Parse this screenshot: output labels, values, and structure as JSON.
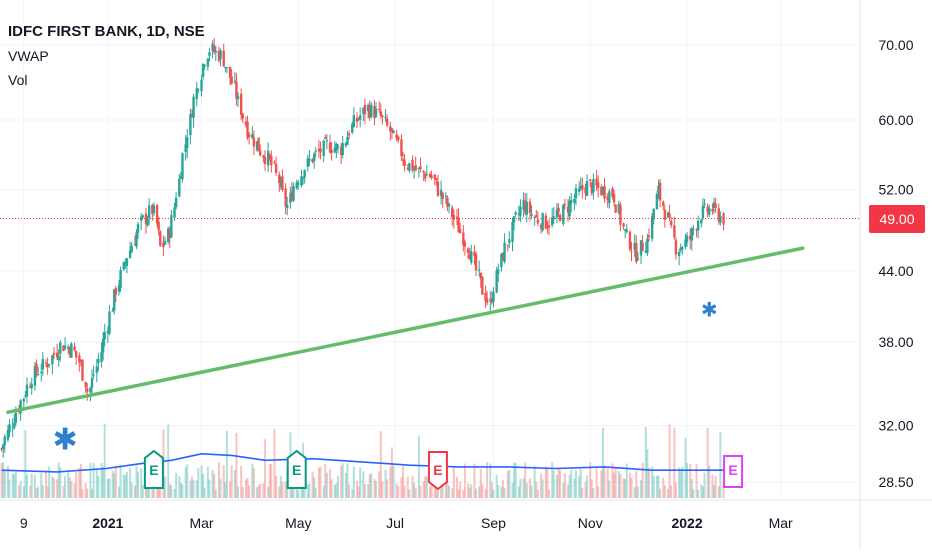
{
  "chart_data": {
    "type": "candlestick",
    "title": "IDFC FIRST BANK, 1D, NSE",
    "indicators": [
      "VWAP",
      "Vol"
    ],
    "last_price": 49.0,
    "last_price_label": "49.00",
    "y_ticks": [
      70.0,
      60.0,
      52.0,
      44.0,
      38.0,
      32.0,
      28.5
    ],
    "y_tick_labels": [
      "70.00",
      "60.00",
      "52.00",
      "44.00",
      "38.00",
      "32.00",
      "28.50"
    ],
    "y_scale": "log",
    "x_tick_labels": [
      "9",
      "2021",
      "Mar",
      "May",
      "Jul",
      "Sep",
      "Nov",
      "2022",
      "Mar"
    ],
    "x_tick_bold": [
      false,
      true,
      false,
      false,
      false,
      false,
      false,
      true,
      false
    ],
    "x_range": [
      "2020-10-25",
      "2022-04-20"
    ],
    "price_series": [
      [
        "2020-10-26",
        30.5
      ],
      [
        "2020-11-05",
        33.0
      ],
      [
        "2020-11-15",
        35.5
      ],
      [
        "2020-11-25",
        36.5
      ],
      [
        "2020-12-03",
        37.8
      ],
      [
        "2020-12-10",
        37.5
      ],
      [
        "2020-12-16",
        36.0
      ],
      [
        "2020-12-20",
        34.2
      ],
      [
        "2020-12-27",
        36.8
      ],
      [
        "2021-01-06",
        42.0
      ],
      [
        "2021-01-14",
        45.5
      ],
      [
        "2021-01-22",
        48.5
      ],
      [
        "2021-01-30",
        50.0
      ],
      [
        "2021-02-04",
        46.0
      ],
      [
        "2021-02-10",
        48.0
      ],
      [
        "2021-02-18",
        56.0
      ],
      [
        "2021-02-24",
        62.0
      ],
      [
        "2021-03-02",
        67.0
      ],
      [
        "2021-03-06",
        69.5
      ],
      [
        "2021-03-14",
        68.5
      ],
      [
        "2021-03-22",
        64.0
      ],
      [
        "2021-03-30",
        59.0
      ],
      [
        "2021-04-07",
        56.5
      ],
      [
        "2021-04-14",
        55.0
      ],
      [
        "2021-04-20",
        52.5
      ],
      [
        "2021-04-24",
        50.0
      ],
      [
        "2021-04-30",
        53.0
      ],
      [
        "2021-05-10",
        55.5
      ],
      [
        "2021-05-20",
        57.0
      ],
      [
        "2021-05-28",
        56.5
      ],
      [
        "2021-06-05",
        59.5
      ],
      [
        "2021-06-14",
        61.5
      ],
      [
        "2021-06-22",
        60.5
      ],
      [
        "2021-06-30",
        58.0
      ],
      [
        "2021-07-08",
        55.0
      ],
      [
        "2021-07-16",
        54.0
      ],
      [
        "2021-07-24",
        53.5
      ],
      [
        "2021-08-01",
        51.0
      ],
      [
        "2021-08-09",
        48.5
      ],
      [
        "2021-08-17",
        46.0
      ],
      [
        "2021-08-25",
        42.5
      ],
      [
        "2021-08-30",
        41.0
      ],
      [
        "2021-09-05",
        44.5
      ],
      [
        "2021-09-12",
        47.5
      ],
      [
        "2021-09-20",
        50.5
      ],
      [
        "2021-09-28",
        49.0
      ],
      [
        "2021-10-06",
        48.5
      ],
      [
        "2021-10-14",
        49.5
      ],
      [
        "2021-10-22",
        51.0
      ],
      [
        "2021-10-30",
        52.5
      ],
      [
        "2021-11-08",
        52.0
      ],
      [
        "2021-11-16",
        51.5
      ],
      [
        "2021-11-22",
        48.0
      ],
      [
        "2021-11-30",
        45.5
      ],
      [
        "2021-12-08",
        47.0
      ],
      [
        "2021-12-14",
        52.0
      ],
      [
        "2021-12-20",
        49.0
      ],
      [
        "2021-12-26",
        46.0
      ],
      [
        "2022-01-03",
        47.0
      ],
      [
        "2022-01-10",
        49.5
      ],
      [
        "2022-01-17",
        50.0
      ],
      [
        "2022-01-24",
        49.0
      ]
    ],
    "trendline": [
      [
        "2020-10-30",
        32.9
      ],
      [
        "2022-03-15",
        46.1
      ]
    ],
    "volume_series": [
      [
        "2020-10-26",
        29.2
      ],
      [
        "2020-11-30",
        29.1
      ],
      [
        "2020-12-31",
        29.3
      ],
      [
        "2021-01-22",
        29.6
      ],
      [
        "2021-02-10",
        29.8
      ],
      [
        "2021-03-01",
        30.2
      ],
      [
        "2021-03-20",
        30.1
      ],
      [
        "2021-04-10",
        29.8
      ],
      [
        "2021-05-10",
        29.9
      ],
      [
        "2021-06-10",
        29.7
      ],
      [
        "2021-07-10",
        29.5
      ],
      [
        "2021-08-10",
        29.4
      ],
      [
        "2021-09-10",
        29.4
      ],
      [
        "2021-10-10",
        29.3
      ],
      [
        "2021-11-10",
        29.4
      ],
      [
        "2021-12-10",
        29.2
      ],
      [
        "2022-01-24",
        29.2
      ]
    ],
    "earnings_markers": [
      {
        "date": "2021-01-30",
        "label": "E",
        "color": "#089981",
        "pointer": "up"
      },
      {
        "date": "2021-04-30",
        "label": "E",
        "color": "#089981",
        "pointer": "up"
      },
      {
        "date": "2021-07-28",
        "label": "E",
        "color": "#f23645",
        "pointer": "down"
      },
      {
        "date": "2022-01-30",
        "label": "E",
        "color": "#e040fb",
        "pointer": "none"
      }
    ],
    "event_markers": [
      {
        "date": "2020-12-05",
        "symbol": "✱",
        "price": 31.0,
        "size": "large"
      },
      {
        "date": "2022-01-15",
        "symbol": "✱",
        "price": 40.5,
        "size": "small"
      }
    ],
    "colors": {
      "up": "#26a69a",
      "down": "#ef5350",
      "trendline": "#66bb6a",
      "vwap": "#2962ff",
      "last_price_line": "#f23645",
      "grid": "#f0f3fa",
      "event": "#2f7fd1"
    }
  }
}
